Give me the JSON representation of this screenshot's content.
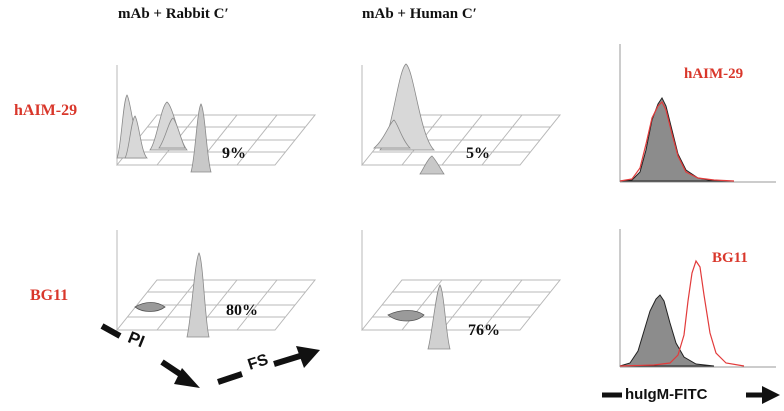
{
  "column_titles": [
    "mAb + Rabbit C′",
    "mAb + Human C′"
  ],
  "rows": [
    {
      "label": "hAIM-29",
      "rabbit_percent": "9%",
      "human_percent": "5%",
      "hist_label": "hAIM-29"
    },
    {
      "label": "BG11",
      "rabbit_percent": "80%",
      "human_percent": "76%",
      "hist_label": "BG11"
    }
  ],
  "axes": {
    "pi": "PI",
    "fs": "FS",
    "hist": "huIgM-FITC"
  },
  "colors": {
    "label_red": "#d9372b",
    "text": "#111111",
    "grid": "#b4b4b4",
    "hist_fill": "#8c8c8c",
    "hist_red": "#e23b3b"
  }
}
